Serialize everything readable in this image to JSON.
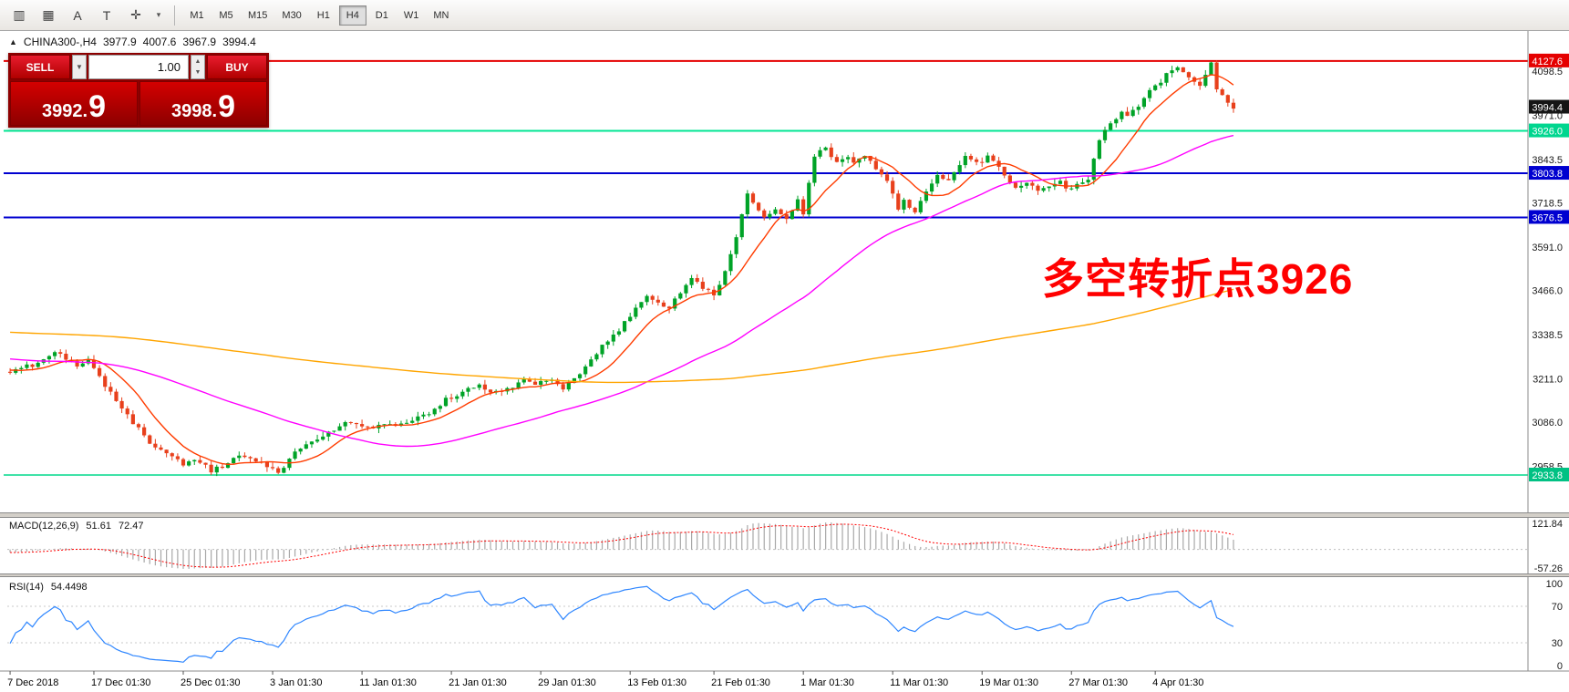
{
  "toolbar": {
    "icons": [
      {
        "name": "chart-style-icon",
        "glyph": "▥"
      },
      {
        "name": "grid-icon",
        "glyph": "▦"
      },
      {
        "name": "text-annotation-icon",
        "glyph": "A"
      },
      {
        "name": "text-label-icon",
        "glyph": "T"
      },
      {
        "name": "crosshair-tool-icon",
        "glyph": "✛"
      },
      {
        "name": "cursor-dropdown-icon",
        "glyph": "▾"
      }
    ],
    "timeframes": [
      {
        "label": "M1",
        "active": false
      },
      {
        "label": "M5",
        "active": false
      },
      {
        "label": "M15",
        "active": false
      },
      {
        "label": "M30",
        "active": false
      },
      {
        "label": "H1",
        "active": false
      },
      {
        "label": "H4",
        "active": true
      },
      {
        "label": "D1",
        "active": false
      },
      {
        "label": "W1",
        "active": false
      },
      {
        "label": "MN",
        "active": false
      }
    ]
  },
  "header": {
    "collapse_glyph": "▲",
    "title": "CHINA300-,H4",
    "open": "3977.9",
    "high": "4007.6",
    "low": "3967.9",
    "close": "3994.4"
  },
  "trade_panel": {
    "sell_label": "SELL",
    "buy_label": "BUY",
    "volume": "1.00",
    "dropdown_glyph": "▼",
    "step_up_glyph": "▲",
    "step_down_glyph": "▼",
    "sell_price_small": "3992.",
    "sell_price_large": "9",
    "buy_price_small": "3998.",
    "buy_price_large": "9"
  },
  "annotation": {
    "text": "多空转折点3926",
    "color": "#ff0000"
  },
  "indicators": {
    "macd_label": "MACD(12,26,9)",
    "macd_value1": "51.61",
    "macd_value2": "72.47",
    "rsi_label": "RSI(14)",
    "rsi_value": "54.4498"
  },
  "chart_data": {
    "type": "candlestick",
    "symbol": "CHINA300",
    "timeframe": "H4",
    "title": "CHINA300-,H4",
    "ohlc_current": {
      "open": 3977.9,
      "high": 4007.6,
      "low": 3967.9,
      "close": 3994.4
    },
    "ylim": [
      2826,
      4214
    ],
    "up_color": "#00a327",
    "down_color": "#e8401c",
    "y_ticks": [
      4098.5,
      3971.0,
      3843.5,
      3718.5,
      3591.0,
      3466.0,
      3338.5,
      3211.0,
      3086.0,
      2958.5
    ],
    "price_markers": [
      {
        "value": 4127.6,
        "label": "4127.6",
        "box_color": "#e50000",
        "line_color": "#e50000",
        "line_width": 2
      },
      {
        "value": 3994.4,
        "label": "3994.4",
        "box_color": "#151515",
        "line_color": null,
        "line_width": 0
      },
      {
        "value": 3926.0,
        "label": "3926.0",
        "box_color": "#00d68f",
        "line_color": "#00e693",
        "line_width": 2
      },
      {
        "value": 3803.8,
        "label": "3803.8",
        "box_color": "#0000d0",
        "line_color": "#0000d0",
        "line_width": 2
      },
      {
        "value": 3676.5,
        "label": "3676.5",
        "box_color": "#0000d0",
        "line_color": "#0000d0",
        "line_width": 2
      },
      {
        "value": 2933.8,
        "label": "2933.8",
        "box_color": "#00c183",
        "line_color": "#00d98b",
        "line_width": 1.5
      }
    ],
    "time_labels": [
      {
        "idx": 0,
        "label": "7 Dec 2018"
      },
      {
        "idx": 15,
        "label": "17 Dec 01:30"
      },
      {
        "idx": 31,
        "label": "25 Dec 01:30"
      },
      {
        "idx": 47,
        "label": "3 Jan 01:30"
      },
      {
        "idx": 63,
        "label": "11 Jan 01:30"
      },
      {
        "idx": 79,
        "label": "21 Jan 01:30"
      },
      {
        "idx": 95,
        "label": "29 Jan 01:30"
      },
      {
        "idx": 111,
        "label": "13 Feb 01:30"
      },
      {
        "idx": 126,
        "label": "21 Feb 01:30"
      },
      {
        "idx": 142,
        "label": "1 Mar 01:30"
      },
      {
        "idx": 158,
        "label": "11 Mar 01:30"
      },
      {
        "idx": 174,
        "label": "19 Mar 01:30"
      },
      {
        "idx": 190,
        "label": "27 Mar 01:30"
      },
      {
        "idx": 205,
        "label": "4 Apr 01:30"
      }
    ],
    "candles": {
      "count": 220,
      "prehistory": 200,
      "seed": 42,
      "noise": 7,
      "wick": 14,
      "anchors": [
        [
          -200,
          3380
        ],
        [
          -130,
          3400
        ],
        [
          -60,
          3320
        ],
        [
          -20,
          3262
        ],
        [
          0,
          3230
        ],
        [
          4,
          3252
        ],
        [
          8,
          3288
        ],
        [
          12,
          3246
        ],
        [
          14,
          3268
        ],
        [
          17,
          3192
        ],
        [
          19,
          3150
        ],
        [
          22,
          3085
        ],
        [
          25,
          3030
        ],
        [
          27,
          3000
        ],
        [
          29,
          2985
        ],
        [
          31,
          2962
        ],
        [
          34,
          2976
        ],
        [
          36,
          2948
        ],
        [
          38,
          2960
        ],
        [
          41,
          2986
        ],
        [
          44,
          2974
        ],
        [
          46,
          2958
        ],
        [
          48,
          2936
        ],
        [
          51,
          3000
        ],
        [
          54,
          3026
        ],
        [
          56,
          3050
        ],
        [
          59,
          3076
        ],
        [
          62,
          3086
        ],
        [
          65,
          3064
        ],
        [
          67,
          3086
        ],
        [
          70,
          3078
        ],
        [
          73,
          3096
        ],
        [
          75,
          3110
        ],
        [
          78,
          3150
        ],
        [
          81,
          3176
        ],
        [
          84,
          3196
        ],
        [
          86,
          3166
        ],
        [
          89,
          3180
        ],
        [
          92,
          3210
        ],
        [
          94,
          3190
        ],
        [
          97,
          3214
        ],
        [
          99,
          3180
        ],
        [
          102,
          3222
        ],
        [
          104,
          3270
        ],
        [
          107,
          3320
        ],
        [
          110,
          3372
        ],
        [
          112,
          3420
        ],
        [
          114,
          3452
        ],
        [
          116,
          3430
        ],
        [
          118,
          3410
        ],
        [
          120,
          3462
        ],
        [
          122,
          3500
        ],
        [
          124,
          3470
        ],
        [
          126,
          3452
        ],
        [
          128,
          3520
        ],
        [
          130,
          3622
        ],
        [
          132,
          3740
        ],
        [
          133,
          3712
        ],
        [
          135,
          3682
        ],
        [
          137,
          3702
        ],
        [
          139,
          3672
        ],
        [
          141,
          3722
        ],
        [
          142,
          3692
        ],
        [
          144,
          3850
        ],
        [
          146,
          3882
        ],
        [
          148,
          3830
        ],
        [
          150,
          3856
        ],
        [
          151,
          3832
        ],
        [
          153,
          3852
        ],
        [
          155,
          3820
        ],
        [
          157,
          3782
        ],
        [
          159,
          3702
        ],
        [
          160,
          3722
        ],
        [
          162,
          3692
        ],
        [
          164,
          3752
        ],
        [
          166,
          3800
        ],
        [
          168,
          3782
        ],
        [
          170,
          3822
        ],
        [
          171,
          3850
        ],
        [
          173,
          3830
        ],
        [
          175,
          3852
        ],
        [
          177,
          3820
        ],
        [
          179,
          3780
        ],
        [
          180,
          3762
        ],
        [
          182,
          3782
        ],
        [
          184,
          3752
        ],
        [
          186,
          3772
        ],
        [
          188,
          3782
        ],
        [
          189,
          3762
        ],
        [
          191,
          3772
        ],
        [
          193,
          3792
        ],
        [
          195,
          3900
        ],
        [
          197,
          3950
        ],
        [
          199,
          3980
        ],
        [
          200,
          3972
        ],
        [
          202,
          4000
        ],
        [
          204,
          4040
        ],
        [
          206,
          4062
        ],
        [
          207,
          4090
        ],
        [
          209,
          4110
        ],
        [
          211,
          4082
        ],
        [
          213,
          4060
        ],
        [
          215,
          4120
        ],
        [
          216,
          4042
        ],
        [
          218,
          4012
        ],
        [
          219,
          3994
        ]
      ]
    },
    "moving_averages": [
      {
        "name": "fast",
        "period": 10,
        "color": "#ff3c00"
      },
      {
        "name": "mid",
        "period": 50,
        "color": "#ff00ff"
      },
      {
        "name": "slow",
        "period": 200,
        "color": "#ffa500"
      }
    ],
    "macd": {
      "fast": 12,
      "slow": 26,
      "signal": 9,
      "hist_color": "#a8a8a8",
      "signal_color": "#ff0000",
      "label_top": "121.84",
      "label_bottom": "-57.26"
    },
    "rsi": {
      "period": 14,
      "color": "#2e86ff",
      "levels": [
        70,
        30
      ],
      "axis_labels": [
        {
          "value": 100,
          "label": "100"
        },
        {
          "value": 70,
          "label": "70"
        },
        {
          "value": 30,
          "label": "30"
        },
        {
          "value": 0,
          "label": "0"
        }
      ]
    }
  }
}
